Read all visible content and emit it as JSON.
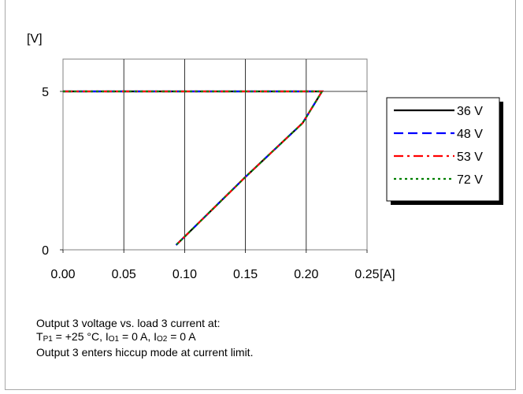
{
  "chart_data": {
    "type": "line",
    "ylabel_unit": "[V]",
    "xlabel_unit": "[A]",
    "xlim": [
      0,
      0.25
    ],
    "ylim": [
      0,
      6
    ],
    "x_ticks": [
      "0.00",
      "0.05",
      "0.10",
      "0.15",
      "0.20",
      "0.25"
    ],
    "y_ticks": [
      "0",
      "5"
    ],
    "grid": "vertical and y=5",
    "legend_position": "right",
    "series": [
      {
        "name": "36 V",
        "color": "#000000",
        "dash": "solid",
        "x": [
          0.0,
          0.205,
          0.213,
          0.197,
          0.15,
          0.093
        ],
        "y": [
          5.0,
          5.0,
          5.0,
          4.0,
          2.3,
          0.15
        ]
      },
      {
        "name": "48 V",
        "color": "#0000ff",
        "dash": "dashed",
        "x": [
          0.0,
          0.205,
          0.213,
          0.197,
          0.15,
          0.093
        ],
        "y": [
          5.0,
          5.0,
          5.0,
          4.0,
          2.3,
          0.15
        ]
      },
      {
        "name": "53 V",
        "color": "#ff0000",
        "dash": "dash-dot",
        "x": [
          0.0,
          0.205,
          0.213,
          0.197,
          0.15,
          0.093
        ],
        "y": [
          5.0,
          5.0,
          5.0,
          4.0,
          2.3,
          0.15
        ]
      },
      {
        "name": "72 V",
        "color": "#008000",
        "dash": "dotted",
        "x": [
          0.0,
          0.205,
          0.213,
          0.197,
          0.15,
          0.093
        ],
        "y": [
          5.0,
          5.0,
          5.0,
          4.0,
          2.3,
          0.15
        ]
      }
    ]
  },
  "caption": {
    "line1": "Output 3 voltage vs. load 3 current at:",
    "line2_tp": "T",
    "line2_tp_sub": "P1",
    "line2_a": " = +25 °C, I",
    "line2_i1_sub": "O1",
    "line2_b": " = 0 A, I",
    "line2_i2_sub": "O2",
    "line2_c": " = 0 A",
    "line3": "Output 3 enters hiccup mode at current limit."
  }
}
